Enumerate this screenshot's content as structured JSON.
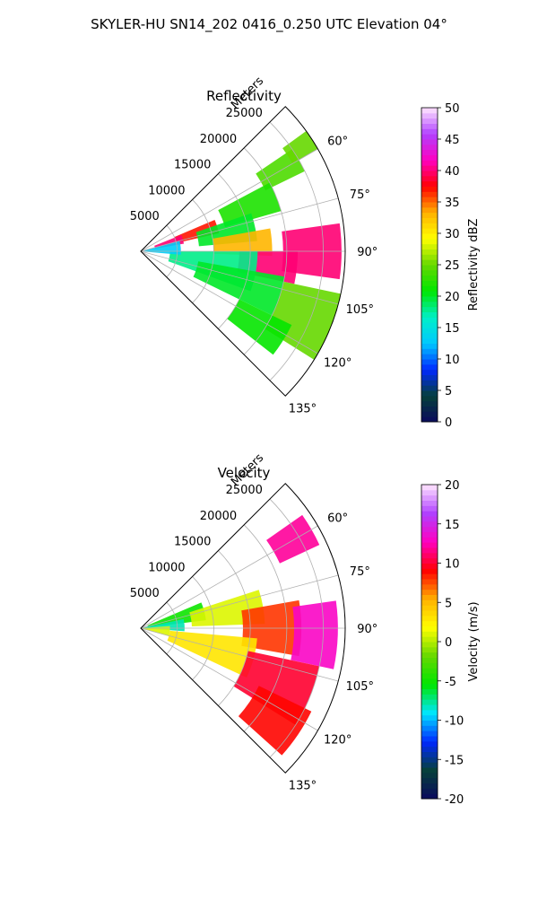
{
  "title": "SKYLER-HU  SN14_202  0416_0.250 UTC Elevation 04°",
  "chart_data": [
    {
      "type": "polar-ppi",
      "title": "Reflectivity",
      "range_label": "Meters",
      "range_ticks": [
        5000,
        10000,
        15000,
        20000,
        25000
      ],
      "range_max": 28000,
      "azimuth_ticks": [
        "60°",
        "75°",
        "90°",
        "105°",
        "120°",
        "135°"
      ],
      "azimuth_tick_values": [
        60,
        75,
        90,
        105,
        120,
        135
      ],
      "azimuth_range": [
        45,
        135
      ],
      "colorbar": {
        "label": "Reflectivity dBZ",
        "min": 0,
        "max": 50,
        "ticks": [
          0,
          5,
          10,
          15,
          20,
          25,
          30,
          35,
          40,
          45,
          50
        ],
        "stops": [
          "#0a0a5e",
          "#06403a",
          "#0028ff",
          "#00c8ff",
          "#00f0c8",
          "#00e600",
          "#66d800",
          "#ffff00",
          "#ffb000",
          "#ff0000",
          "#ff00c0",
          "#b040ff",
          "#ffe6ff"
        ]
      },
      "cells": [
        {
          "az": 60,
          "r": 22000,
          "sa": 4,
          "sr": 3000,
          "value": 24
        },
        {
          "az": 57,
          "r": 26000,
          "sa": 3,
          "sr": 2000,
          "value": 25
        },
        {
          "az": 68,
          "r": 16000,
          "sa": 6,
          "sr": 4000,
          "value": 22
        },
        {
          "az": 72,
          "r": 8000,
          "sa": 5,
          "sr": 3000,
          "value": 37
        },
        {
          "az": 74,
          "r": 4000,
          "sa": 6,
          "sr": 2000,
          "value": 40
        },
        {
          "az": 78,
          "r": 12000,
          "sa": 7,
          "sr": 4000,
          "value": 20
        },
        {
          "az": 86,
          "r": 14000,
          "sa": 6,
          "sr": 4000,
          "value": 33
        },
        {
          "az": 90,
          "r": 23500,
          "sa": 8,
          "sr": 4000,
          "value": 40
        },
        {
          "az": 96,
          "r": 17500,
          "sa": 6,
          "sr": 4000,
          "value": 40
        },
        {
          "az": 100,
          "r": 10000,
          "sa": 10,
          "sr": 6000,
          "value": 18
        },
        {
          "az": 108,
          "r": 14000,
          "sa": 8,
          "sr": 6000,
          "value": 20
        },
        {
          "az": 112,
          "r": 24000,
          "sa": 10,
          "sr": 4000,
          "value": 25
        },
        {
          "az": 122,
          "r": 19000,
          "sa": 6,
          "sr": 4000,
          "value": 21
        },
        {
          "az": 85,
          "r": 3000,
          "sa": 10,
          "sr": 2500,
          "value": 13
        }
      ]
    },
    {
      "type": "polar-ppi",
      "title": "Velocity",
      "range_label": "Meters",
      "range_ticks": [
        5000,
        10000,
        15000,
        20000,
        25000
      ],
      "range_max": 28000,
      "azimuth_ticks": [
        "60°",
        "75°",
        "90°",
        "105°",
        "120°",
        "135°"
      ],
      "azimuth_tick_values": [
        60,
        75,
        90,
        105,
        120,
        135
      ],
      "azimuth_range": [
        45,
        135
      ],
      "colorbar": {
        "label": "Velocity (m/s)",
        "min": -20,
        "max": 20,
        "ticks": [
          -20,
          -15,
          -10,
          -5,
          0,
          5,
          10,
          15,
          20
        ],
        "stops": [
          "#0a0a5e",
          "#06403a",
          "#0028ff",
          "#00e6ff",
          "#00e600",
          "#66d800",
          "#ffff00",
          "#ffb000",
          "#ff0000",
          "#ff00c0",
          "#b040ff",
          "#ffe6ff"
        ]
      },
      "cells": [
        {
          "az": 60,
          "r": 24000,
          "sa": 5,
          "sr": 3000,
          "value": 12
        },
        {
          "az": 75,
          "r": 5000,
          "sa": 8,
          "sr": 4000,
          "value": -5
        },
        {
          "az": 80,
          "r": 12000,
          "sa": 8,
          "sr": 5000,
          "value": 1
        },
        {
          "az": 86,
          "r": 3000,
          "sa": 8,
          "sr": 3000,
          "value": -8
        },
        {
          "az": 90,
          "r": 18000,
          "sa": 10,
          "sr": 4000,
          "value": 8
        },
        {
          "az": 92,
          "r": 24000,
          "sa": 10,
          "sr": 3000,
          "value": 13
        },
        {
          "az": 105,
          "r": 10000,
          "sa": 10,
          "sr": 6000,
          "value": 3
        },
        {
          "az": 112,
          "r": 20000,
          "sa": 10,
          "sr": 5000,
          "value": 10
        },
        {
          "az": 124,
          "r": 22000,
          "sa": 8,
          "sr": 4000,
          "value": 9
        },
        {
          "az": 96,
          "r": 2000,
          "sa": 10,
          "sr": 2000,
          "value": 1
        }
      ]
    }
  ]
}
